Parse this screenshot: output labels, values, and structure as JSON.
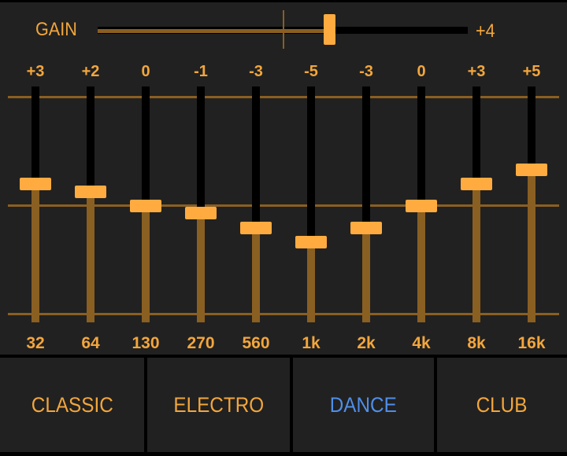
{
  "gain": {
    "label": "GAIN",
    "value_text": "+4",
    "value": 4,
    "range": [
      -16,
      16
    ]
  },
  "bands": [
    {
      "value": "+3",
      "freq": "32"
    },
    {
      "value": "+2",
      "freq": "64"
    },
    {
      "value": "0",
      "freq": "130"
    },
    {
      "value": "-1",
      "freq": "270"
    },
    {
      "value": "-3",
      "freq": "560"
    },
    {
      "value": "-5",
      "freq": "1k"
    },
    {
      "value": "-3",
      "freq": "2k"
    },
    {
      "value": "0",
      "freq": "4k"
    },
    {
      "value": "+3",
      "freq": "8k"
    },
    {
      "value": "+5",
      "freq": "16k"
    }
  ],
  "band_range": [
    -15,
    15
  ],
  "presets": [
    {
      "label": "CLASSIC",
      "active": false
    },
    {
      "label": "ELECTRO",
      "active": false
    },
    {
      "label": "DANCE",
      "active": true
    },
    {
      "label": "CLUB",
      "active": false
    }
  ],
  "colors": {
    "accent": "#ffab40",
    "track_fill": "#8a5f22",
    "active_preset": "#4f8ee8",
    "background": "#212121"
  }
}
